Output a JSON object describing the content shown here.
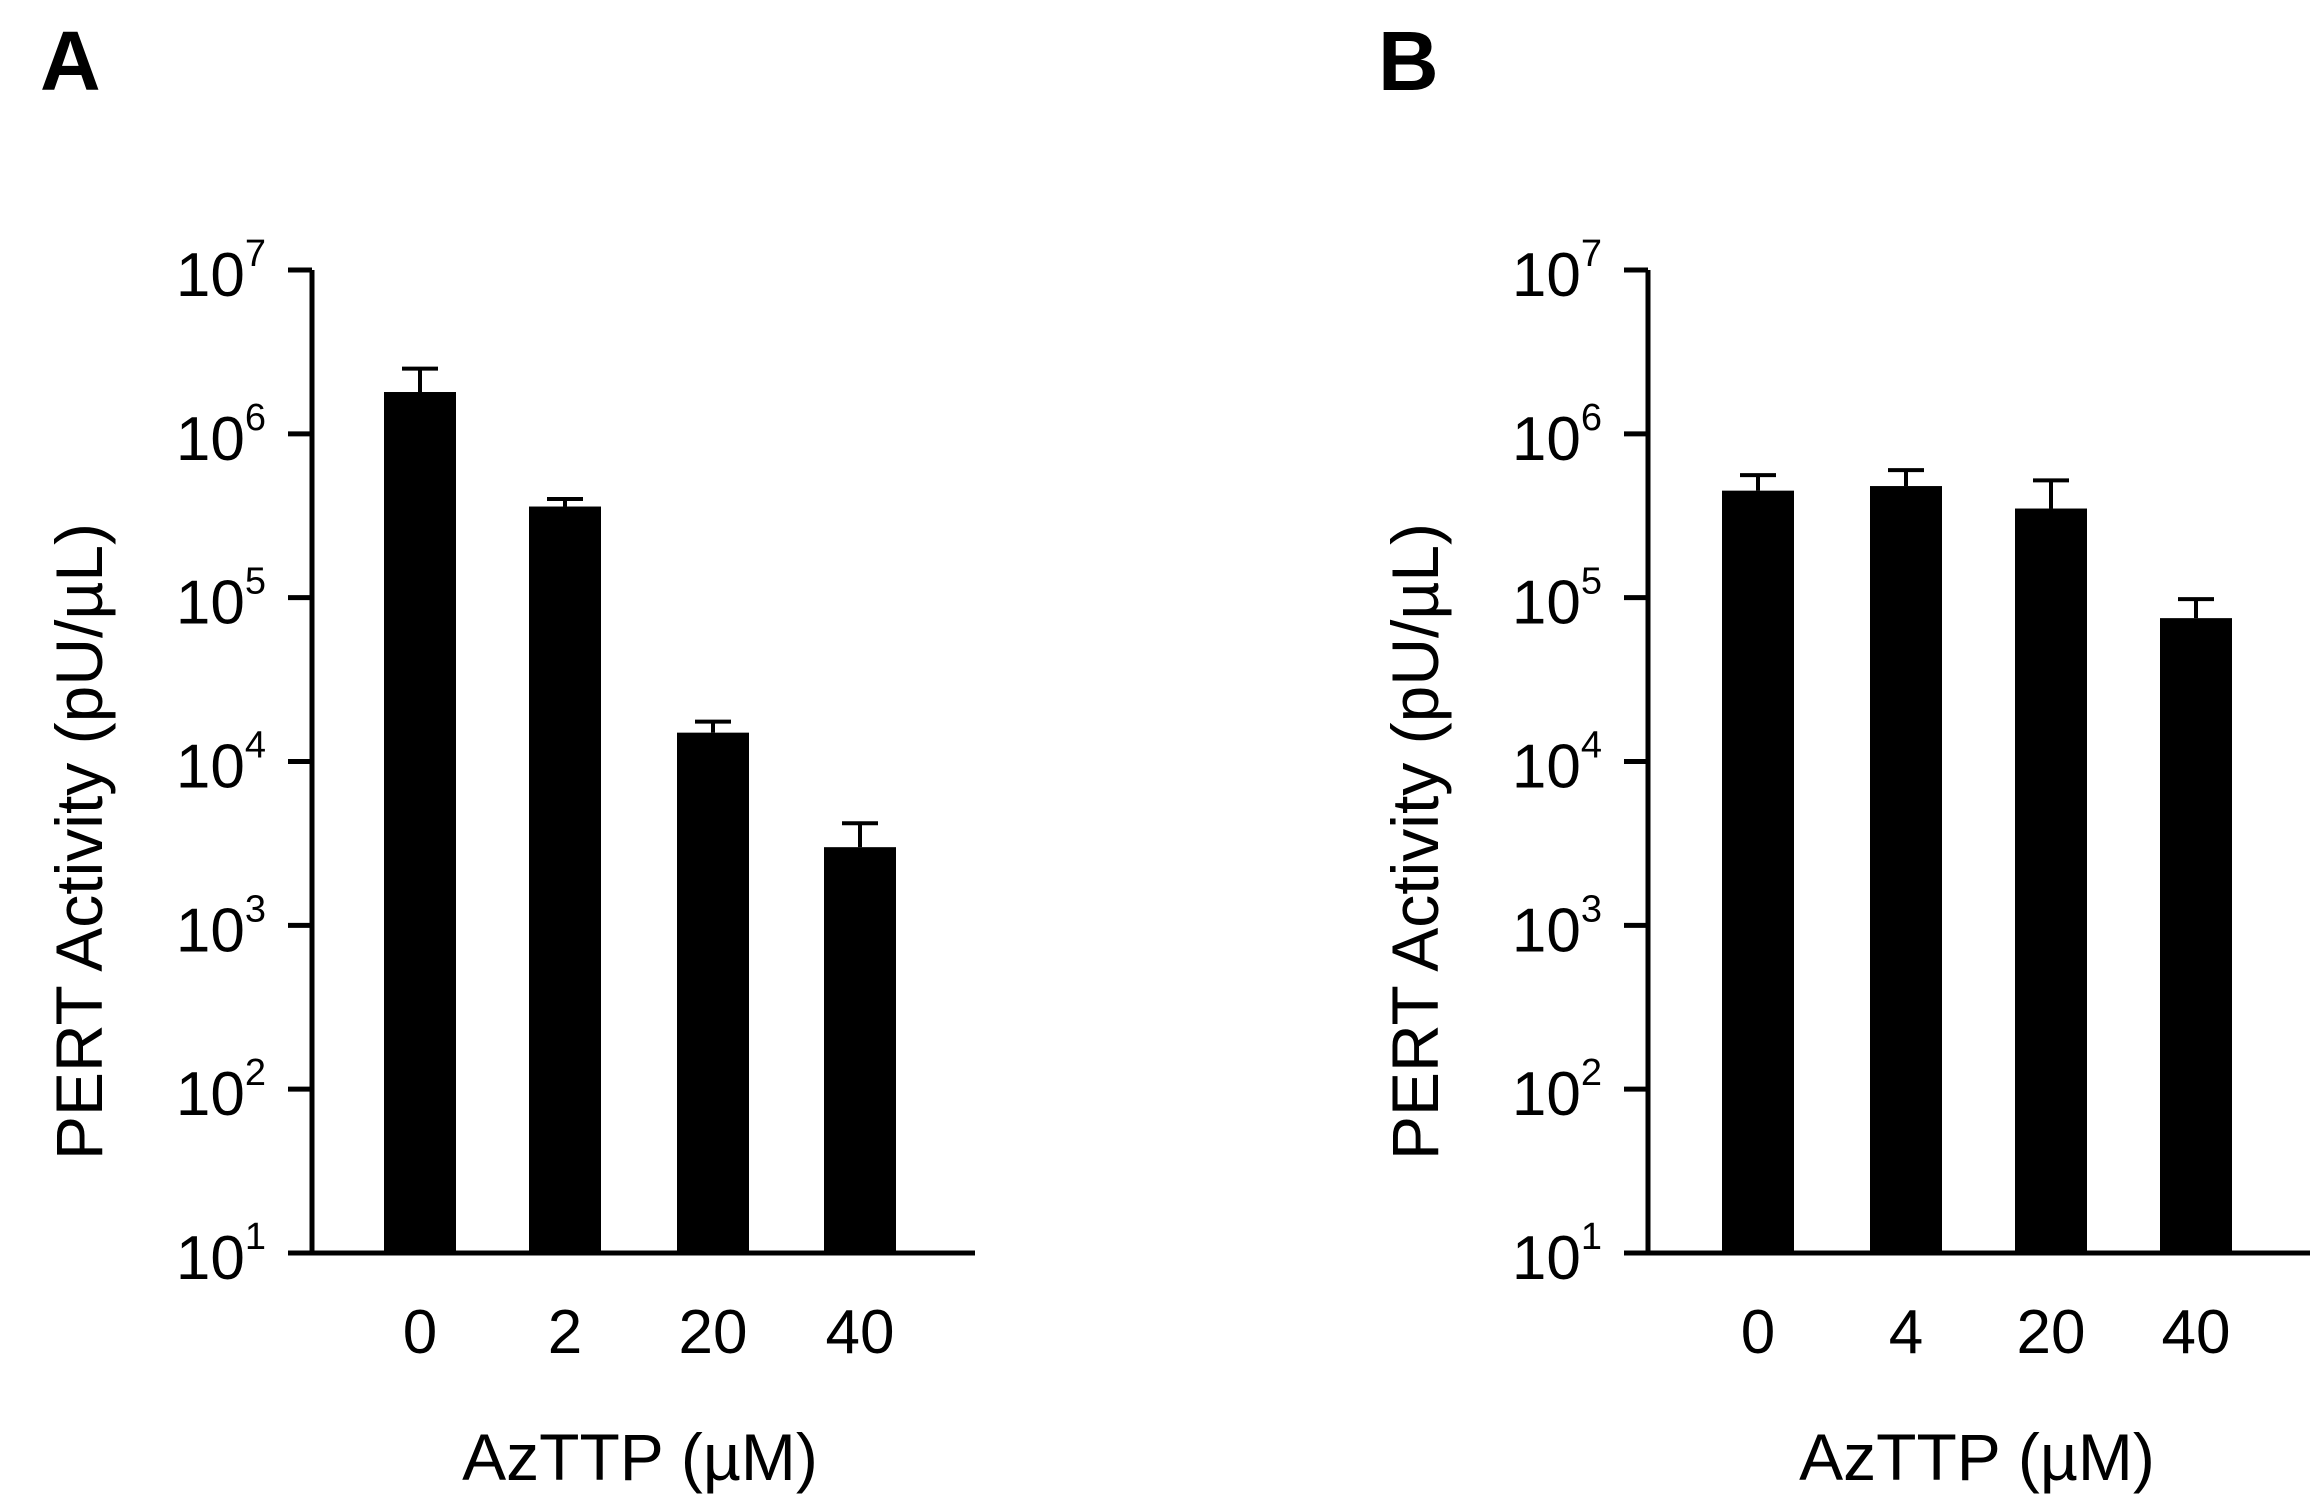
{
  "chart_data": [
    {
      "panel": "A",
      "type": "bar",
      "categories": [
        "0",
        "2",
        "20",
        "40"
      ],
      "values": [
        1800000,
        360000,
        15000,
        3000
      ],
      "error_upper": [
        2500000,
        400000,
        17500,
        4200
      ],
      "xlabel": "AzTTP (µM)",
      "ylabel": "PERT Activity (pU/µL)",
      "yscale": "log",
      "ylim": [
        10,
        10000000
      ],
      "yticks": [
        {
          "base": "10",
          "exp": "1"
        },
        {
          "base": "10",
          "exp": "2"
        },
        {
          "base": "10",
          "exp": "3"
        },
        {
          "base": "10",
          "exp": "4"
        },
        {
          "base": "10",
          "exp": "5"
        },
        {
          "base": "10",
          "exp": "6"
        },
        {
          "base": "10",
          "exp": "7"
        }
      ],
      "bar_color": "#000000"
    },
    {
      "panel": "B",
      "type": "bar",
      "categories": [
        "0",
        "4",
        "20",
        "40"
      ],
      "values": [
        450000,
        480000,
        350000,
        75000
      ],
      "error_upper": [
        560000,
        600000,
        520000,
        98000
      ],
      "xlabel": "AzTTP (µM)",
      "ylabel": "PERT Activity (pU/µL)",
      "yscale": "log",
      "ylim": [
        10,
        10000000
      ],
      "yticks": [
        {
          "base": "10",
          "exp": "1"
        },
        {
          "base": "10",
          "exp": "2"
        },
        {
          "base": "10",
          "exp": "3"
        },
        {
          "base": "10",
          "exp": "4"
        },
        {
          "base": "10",
          "exp": "5"
        },
        {
          "base": "10",
          "exp": "6"
        },
        {
          "base": "10",
          "exp": "7"
        }
      ],
      "bar_color": "#000000"
    }
  ]
}
